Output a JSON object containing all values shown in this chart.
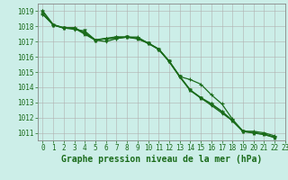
{
  "title": "Graphe pression niveau de la mer (hPa)",
  "background_color": "#cceee8",
  "grid_color": "#b0b0b0",
  "line_color": "#1a6b1a",
  "xlim": [
    -0.5,
    23
  ],
  "ylim": [
    1010.5,
    1019.5
  ],
  "yticks": [
    1011,
    1012,
    1013,
    1014,
    1015,
    1016,
    1017,
    1018,
    1019
  ],
  "xticks": [
    0,
    1,
    2,
    3,
    4,
    5,
    6,
    7,
    8,
    9,
    10,
    11,
    12,
    13,
    14,
    15,
    16,
    17,
    18,
    19,
    20,
    21,
    22,
    23
  ],
  "s1": [
    1018.8,
    1018.1,
    1017.9,
    1017.8,
    1017.7,
    1017.1,
    1017.0,
    1017.2,
    1017.3,
    1017.2,
    1016.9,
    1016.5,
    1015.7,
    1014.7,
    1013.8,
    1013.3,
    1012.8,
    1012.3,
    1011.8,
    1011.1,
    1011.0,
    1010.9,
    1010.7
  ],
  "s2": [
    1018.8,
    1018.1,
    1017.9,
    1017.9,
    1017.6,
    1017.1,
    1017.2,
    1017.2,
    1017.3,
    1017.3,
    1016.9,
    1016.5,
    1015.7,
    1014.7,
    1014.5,
    1014.2,
    1013.5,
    1012.9,
    1011.9,
    1011.1,
    1011.1,
    1011.0,
    1010.8
  ],
  "s3": [
    1019.0,
    1018.1,
    1017.9,
    1017.9,
    1017.5,
    1017.1,
    1017.2,
    1017.3,
    1017.3,
    1017.2,
    1016.9,
    1016.5,
    1015.7,
    1014.7,
    1013.8,
    1013.3,
    1012.9,
    1012.4,
    1011.8,
    1011.1,
    1011.0,
    1010.9,
    1010.7
  ],
  "tick_fontsize": 5.5,
  "xlabel_fontsize": 7.0
}
